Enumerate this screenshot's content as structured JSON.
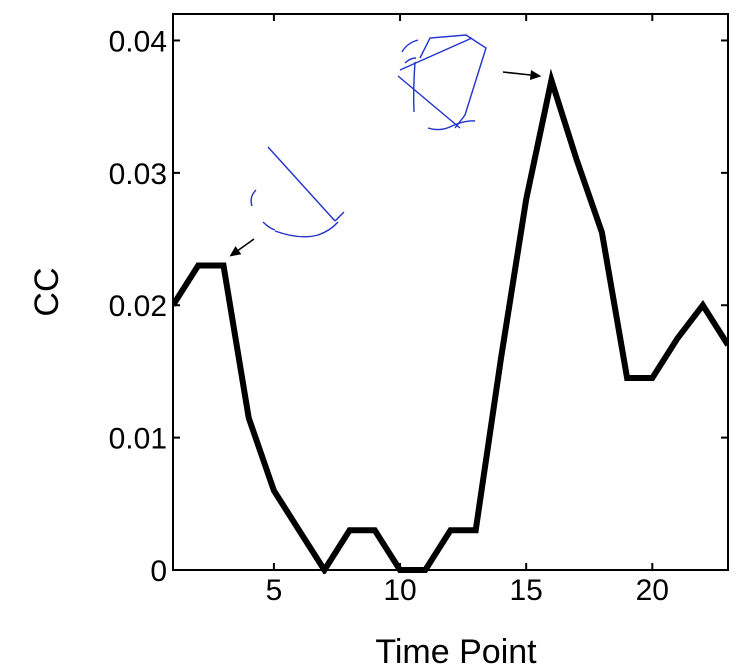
{
  "chart_data": {
    "type": "line",
    "title": "",
    "xlabel": "Time Point",
    "ylabel": "CC",
    "xlim": [
      1,
      23
    ],
    "ylim": [
      0,
      0.042
    ],
    "xticks": [
      5,
      10,
      15,
      20
    ],
    "xtick_labels": [
      "5",
      "10",
      "15",
      "20"
    ],
    "yticks": [
      0,
      0.01,
      0.02,
      0.03,
      0.04
    ],
    "ytick_labels": [
      "0",
      "0.01",
      "0.02",
      "0.03",
      "0.04"
    ],
    "grid": false,
    "legend": "none",
    "series": [
      {
        "color": "#000000",
        "x": [
          1,
          2,
          3,
          4,
          5,
          6,
          7,
          8,
          9,
          10,
          11,
          12,
          13,
          14,
          15,
          16,
          17,
          18,
          19,
          20,
          21,
          22,
          23
        ],
        "y": [
          0.02,
          0.023,
          0.023,
          0.0115,
          0.006,
          0.003,
          0.0,
          0.003,
          0.003,
          0.0,
          0.0,
          0.003,
          0.003,
          0.016,
          0.028,
          0.037,
          0.031,
          0.0255,
          0.0145,
          0.0145,
          0.0175,
          0.02,
          0.017
        ]
      }
    ],
    "annotations": [
      {
        "kind": "arrow",
        "name": "arrow-to-point-3",
        "target": {
          "x": 3,
          "y": 0.023
        }
      },
      {
        "kind": "arrow",
        "name": "arrow-to-point-16",
        "target": {
          "x": 16,
          "y": 0.037
        }
      }
    ],
    "inset_color": "#2233cc"
  }
}
